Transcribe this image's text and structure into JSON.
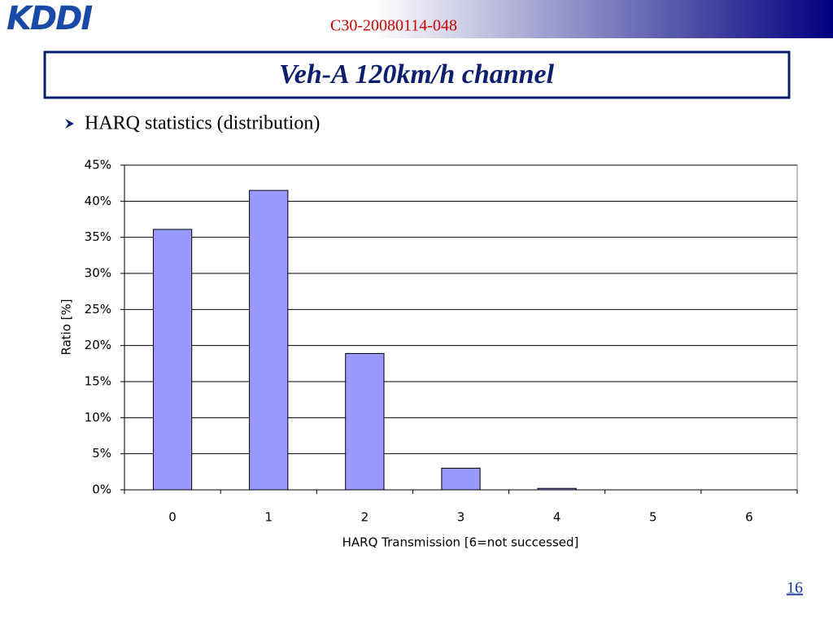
{
  "header": {
    "logo": "KDDI",
    "doc_id": "C30-20080114-048"
  },
  "title": "Veh-A 120km/h channel",
  "bullet": "HARQ statistics (distribution)",
  "chart_data": {
    "type": "bar",
    "categories": [
      "0",
      "1",
      "2",
      "3",
      "4",
      "5",
      "6"
    ],
    "values": [
      36.1,
      41.5,
      18.9,
      3.0,
      0.2,
      0,
      0
    ],
    "color": "#9999ff",
    "x_label": "HARQ Transmission [6=not successed]",
    "y_label": "Ratio [%]",
    "ylim": [
      0,
      45
    ],
    "yticks": [
      {
        "value": 0,
        "label": "0%"
      },
      {
        "value": 5,
        "label": "5%"
      },
      {
        "value": 10,
        "label": "10%"
      },
      {
        "value": 15,
        "label": "15%"
      },
      {
        "value": 20,
        "label": "20%"
      },
      {
        "value": 25,
        "label": "25%"
      },
      {
        "value": 30,
        "label": "30%"
      },
      {
        "value": 35,
        "label": "35%"
      },
      {
        "value": 40,
        "label": "40%"
      },
      {
        "value": 45,
        "label": "45%"
      }
    ],
    "grid": true
  },
  "page_number": "16"
}
